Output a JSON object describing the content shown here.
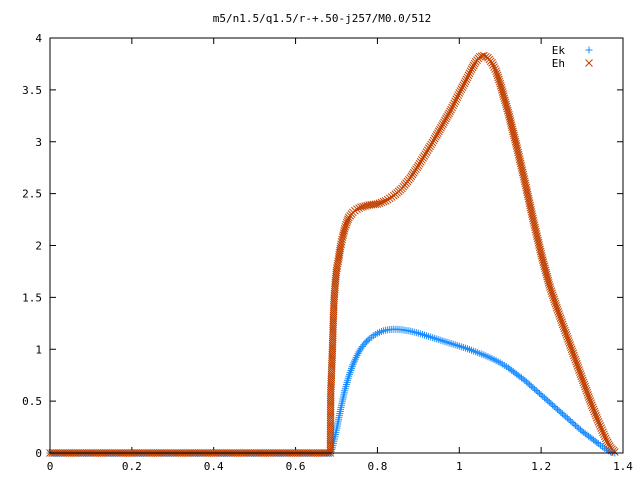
{
  "chart_data": {
    "type": "scatter",
    "title": "m5/n1.5/q1.5/r-+.50-j257/M0.0/512",
    "xlabel": "",
    "ylabel": "",
    "xlim": [
      0,
      1.4
    ],
    "ylim": [
      0,
      4
    ],
    "grid": false,
    "legend_position": "top-right",
    "x_ticks": [
      "0",
      "0.2",
      "0.4",
      "0.6",
      "0.8",
      "1",
      "1.2",
      "1.4"
    ],
    "y_ticks": [
      "0",
      "0.5",
      "1",
      "1.5",
      "2",
      "2.5",
      "3",
      "3.5",
      "4"
    ],
    "series": [
      {
        "name": "Ek",
        "marker": "+",
        "color": "#1a8cff",
        "points": [
          [
            0.0,
            0.0
          ],
          [
            0.1,
            0.0
          ],
          [
            0.2,
            0.0
          ],
          [
            0.3,
            0.0
          ],
          [
            0.4,
            0.0
          ],
          [
            0.5,
            0.0
          ],
          [
            0.6,
            0.0
          ],
          [
            0.67,
            0.0
          ],
          [
            0.685,
            0.0
          ],
          [
            0.69,
            0.05
          ],
          [
            0.7,
            0.22
          ],
          [
            0.71,
            0.42
          ],
          [
            0.72,
            0.6
          ],
          [
            0.73,
            0.74
          ],
          [
            0.74,
            0.85
          ],
          [
            0.75,
            0.94
          ],
          [
            0.76,
            1.01
          ],
          [
            0.77,
            1.06
          ],
          [
            0.78,
            1.1
          ],
          [
            0.79,
            1.13
          ],
          [
            0.8,
            1.155
          ],
          [
            0.81,
            1.172
          ],
          [
            0.82,
            1.183
          ],
          [
            0.83,
            1.19
          ],
          [
            0.84,
            1.193
          ],
          [
            0.85,
            1.192
          ],
          [
            0.86,
            1.188
          ],
          [
            0.88,
            1.175
          ],
          [
            0.9,
            1.155
          ],
          [
            0.92,
            1.13
          ],
          [
            0.94,
            1.105
          ],
          [
            0.96,
            1.08
          ],
          [
            0.98,
            1.055
          ],
          [
            1.0,
            1.03
          ],
          [
            1.02,
            1.005
          ],
          [
            1.04,
            0.975
          ],
          [
            1.06,
            0.945
          ],
          [
            1.08,
            0.91
          ],
          [
            1.1,
            0.87
          ],
          [
            1.12,
            0.82
          ],
          [
            1.14,
            0.76
          ],
          [
            1.16,
            0.7
          ],
          [
            1.18,
            0.63
          ],
          [
            1.2,
            0.56
          ],
          [
            1.22,
            0.49
          ],
          [
            1.24,
            0.42
          ],
          [
            1.26,
            0.35
          ],
          [
            1.28,
            0.28
          ],
          [
            1.3,
            0.21
          ],
          [
            1.32,
            0.15
          ],
          [
            1.34,
            0.09
          ],
          [
            1.35,
            0.06
          ],
          [
            1.36,
            0.03
          ],
          [
            1.37,
            0.01
          ],
          [
            1.38,
            0.0
          ]
        ]
      },
      {
        "name": "Eh",
        "marker": "x",
        "color": "#c04000",
        "points": [
          [
            0.0,
            0.0
          ],
          [
            0.1,
            0.0
          ],
          [
            0.2,
            0.0
          ],
          [
            0.3,
            0.0
          ],
          [
            0.4,
            0.0
          ],
          [
            0.5,
            0.0
          ],
          [
            0.6,
            0.0
          ],
          [
            0.67,
            0.0
          ],
          [
            0.685,
            0.0
          ],
          [
            0.686,
            0.58
          ],
          [
            0.69,
            0.99
          ],
          [
            0.692,
            1.26
          ],
          [
            0.694,
            1.47
          ],
          [
            0.697,
            1.64
          ],
          [
            0.7,
            1.76
          ],
          [
            0.705,
            1.87
          ],
          [
            0.71,
            1.99
          ],
          [
            0.715,
            2.08
          ],
          [
            0.72,
            2.16
          ],
          [
            0.725,
            2.22
          ],
          [
            0.73,
            2.27
          ],
          [
            0.74,
            2.32
          ],
          [
            0.75,
            2.35
          ],
          [
            0.76,
            2.37
          ],
          [
            0.78,
            2.39
          ],
          [
            0.8,
            2.4
          ],
          [
            0.82,
            2.43
          ],
          [
            0.84,
            2.48
          ],
          [
            0.86,
            2.55
          ],
          [
            0.88,
            2.65
          ],
          [
            0.9,
            2.77
          ],
          [
            0.92,
            2.9
          ],
          [
            0.94,
            3.03
          ],
          [
            0.96,
            3.17
          ],
          [
            0.98,
            3.31
          ],
          [
            1.0,
            3.47
          ],
          [
            1.02,
            3.62
          ],
          [
            1.03,
            3.7
          ],
          [
            1.04,
            3.77
          ],
          [
            1.05,
            3.82
          ],
          [
            1.06,
            3.83
          ],
          [
            1.07,
            3.81
          ],
          [
            1.08,
            3.76
          ],
          [
            1.09,
            3.68
          ],
          [
            1.1,
            3.56
          ],
          [
            1.12,
            3.28
          ],
          [
            1.14,
            2.96
          ],
          [
            1.16,
            2.62
          ],
          [
            1.18,
            2.26
          ],
          [
            1.2,
            1.92
          ],
          [
            1.22,
            1.62
          ],
          [
            1.24,
            1.38
          ],
          [
            1.26,
            1.16
          ],
          [
            1.28,
            0.94
          ],
          [
            1.3,
            0.72
          ],
          [
            1.32,
            0.5
          ],
          [
            1.34,
            0.3
          ],
          [
            1.36,
            0.12
          ],
          [
            1.37,
            0.05
          ],
          [
            1.38,
            0.01
          ]
        ]
      }
    ]
  }
}
